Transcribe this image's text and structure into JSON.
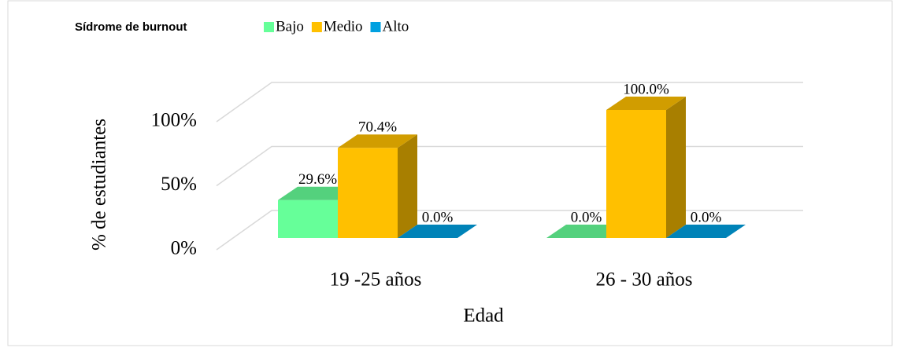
{
  "chart_data": {
    "type": "bar3d",
    "legend_title": "Sídrome de burnout",
    "categories": [
      "19 -25 años",
      "26 - 30 años"
    ],
    "series": [
      {
        "name": "Bajo",
        "color": "#66ff99",
        "values": [
          29.6,
          0
        ],
        "value_labels": [
          "29.6%",
          "0.0%"
        ]
      },
      {
        "name": "Medio",
        "color": "#ffc000",
        "values": [
          70.4,
          100
        ],
        "value_labels": [
          "70.4%",
          "100.0%"
        ]
      },
      {
        "name": "Alto",
        "color": "#00a0e0",
        "values": [
          0,
          0
        ],
        "value_labels": [
          "0.0%",
          "0.0%"
        ]
      }
    ],
    "ylim": [
      0,
      100
    ],
    "yticks": [
      {
        "value": 0,
        "label": "0%"
      },
      {
        "value": 50,
        "label": "50%"
      },
      {
        "value": 100,
        "label": "100%"
      }
    ],
    "ylabel": "% de estudiantes",
    "xlabel": "Edad",
    "grid": true,
    "legend": "top"
  }
}
